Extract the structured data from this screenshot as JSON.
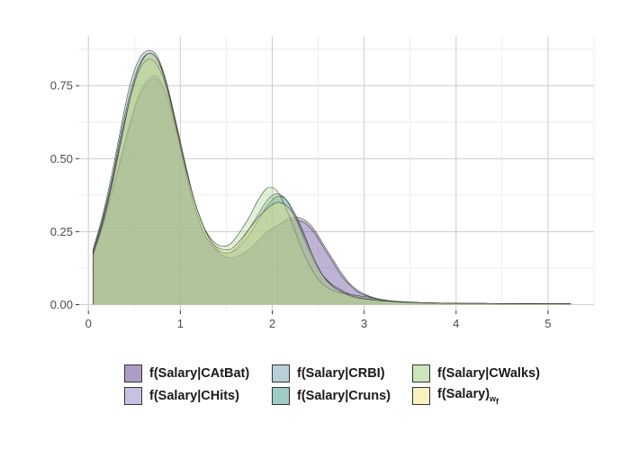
{
  "chart_data": {
    "type": "area",
    "title": "",
    "xlabel": "",
    "ylabel": "",
    "xlim": [
      -0.1,
      5.5
    ],
    "ylim": [
      -0.02,
      0.92
    ],
    "x_ticks": [
      0,
      1,
      2,
      3,
      4,
      5
    ],
    "y_ticks": [
      0.0,
      0.25,
      0.5,
      0.75
    ],
    "x_tick_labels": [
      "0",
      "1",
      "2",
      "3",
      "4",
      "5"
    ],
    "y_tick_labels": [
      "0.00",
      "0.25",
      "0.50",
      "0.75"
    ],
    "grid": true,
    "legend_position": "bottom",
    "series": [
      {
        "name": "f(Salary|CAtBat)",
        "color": "#6a4c93",
        "x": [
          0.05,
          0.15,
          0.25,
          0.35,
          0.45,
          0.55,
          0.65,
          0.75,
          0.85,
          0.95,
          1.05,
          1.15,
          1.25,
          1.35,
          1.45,
          1.55,
          1.65,
          1.75,
          1.85,
          1.95,
          2.05,
          2.15,
          2.25,
          2.35,
          2.45,
          2.55,
          2.65,
          2.75,
          2.85,
          2.95,
          3.05,
          3.15,
          3.25,
          3.35,
          3.5,
          3.7,
          3.9,
          4.1,
          4.3,
          4.5,
          4.7,
          4.9,
          5.1,
          5.25
        ],
        "y": [
          0.18,
          0.27,
          0.38,
          0.5,
          0.62,
          0.72,
          0.77,
          0.78,
          0.72,
          0.6,
          0.46,
          0.34,
          0.25,
          0.2,
          0.17,
          0.16,
          0.17,
          0.19,
          0.22,
          0.25,
          0.27,
          0.29,
          0.3,
          0.29,
          0.26,
          0.21,
          0.16,
          0.11,
          0.07,
          0.045,
          0.03,
          0.02,
          0.014,
          0.01,
          0.008,
          0.006,
          0.005,
          0.004,
          0.004,
          0.003,
          0.003,
          0.003,
          0.003,
          0.003
        ]
      },
      {
        "name": "f(Salary|CHits)",
        "color": "#9b8ec4",
        "x": [
          0.05,
          0.15,
          0.25,
          0.35,
          0.45,
          0.55,
          0.65,
          0.75,
          0.85,
          0.95,
          1.05,
          1.15,
          1.25,
          1.35,
          1.45,
          1.55,
          1.65,
          1.75,
          1.85,
          1.95,
          2.05,
          2.15,
          2.25,
          2.35,
          2.45,
          2.55,
          2.65,
          2.75,
          2.85,
          2.95,
          3.05,
          3.15,
          3.25,
          3.35,
          3.5,
          3.7,
          3.9,
          4.1,
          4.3,
          4.5,
          4.7,
          4.9,
          5.1,
          5.25
        ],
        "y": [
          0.17,
          0.26,
          0.37,
          0.49,
          0.61,
          0.71,
          0.76,
          0.77,
          0.71,
          0.6,
          0.46,
          0.34,
          0.25,
          0.2,
          0.17,
          0.16,
          0.17,
          0.19,
          0.22,
          0.25,
          0.27,
          0.285,
          0.29,
          0.28,
          0.25,
          0.2,
          0.15,
          0.1,
          0.065,
          0.04,
          0.028,
          0.018,
          0.012,
          0.009,
          0.007,
          0.005,
          0.004,
          0.004,
          0.004,
          0.003,
          0.003,
          0.003,
          0.003,
          0.003
        ]
      },
      {
        "name": "f(Salary|CRBI)",
        "color": "#7fa7b8",
        "x": [
          0.05,
          0.15,
          0.25,
          0.35,
          0.45,
          0.55,
          0.65,
          0.75,
          0.85,
          0.95,
          1.05,
          1.15,
          1.25,
          1.35,
          1.45,
          1.55,
          1.65,
          1.75,
          1.85,
          1.95,
          2.05,
          2.15,
          2.25,
          2.35,
          2.45,
          2.55,
          2.65,
          2.75,
          2.85,
          2.95,
          3.05,
          3.15,
          3.25,
          3.35,
          3.5,
          3.7,
          3.9,
          4.1,
          4.3,
          4.5,
          4.7,
          4.9,
          5.1,
          5.25
        ],
        "y": [
          0.19,
          0.3,
          0.44,
          0.6,
          0.75,
          0.84,
          0.87,
          0.85,
          0.76,
          0.62,
          0.47,
          0.34,
          0.25,
          0.2,
          0.18,
          0.18,
          0.21,
          0.26,
          0.31,
          0.36,
          0.38,
          0.36,
          0.3,
          0.22,
          0.15,
          0.1,
          0.07,
          0.05,
          0.035,
          0.025,
          0.018,
          0.014,
          0.012,
          0.01,
          0.008,
          0.006,
          0.005,
          0.004,
          0.004,
          0.003,
          0.004,
          0.004,
          0.003,
          0.003
        ]
      },
      {
        "name": "f(Salary|Cruns)",
        "color": "#4fa38f",
        "x": [
          0.05,
          0.15,
          0.25,
          0.35,
          0.45,
          0.55,
          0.65,
          0.75,
          0.85,
          0.95,
          1.05,
          1.15,
          1.25,
          1.35,
          1.45,
          1.55,
          1.65,
          1.75,
          1.85,
          1.95,
          2.05,
          2.15,
          2.25,
          2.35,
          2.45,
          2.55,
          2.65,
          2.75,
          2.85,
          2.95,
          3.05,
          3.15,
          3.25,
          3.35,
          3.5,
          3.7,
          3.9,
          4.1,
          4.3,
          4.5,
          4.7,
          4.9,
          5.1,
          5.25
        ],
        "y": [
          0.18,
          0.29,
          0.42,
          0.58,
          0.72,
          0.82,
          0.86,
          0.84,
          0.76,
          0.63,
          0.49,
          0.36,
          0.27,
          0.21,
          0.18,
          0.18,
          0.2,
          0.24,
          0.29,
          0.34,
          0.37,
          0.36,
          0.31,
          0.24,
          0.16,
          0.1,
          0.065,
          0.045,
          0.03,
          0.022,
          0.02,
          0.018,
          0.014,
          0.01,
          0.008,
          0.006,
          0.005,
          0.004,
          0.004,
          0.003,
          0.003,
          0.003,
          0.003,
          0.003
        ]
      },
      {
        "name": "f(Salary|CWalks)",
        "color": "#a3d080",
        "x": [
          0.05,
          0.15,
          0.25,
          0.35,
          0.45,
          0.55,
          0.65,
          0.75,
          0.85,
          0.95,
          1.05,
          1.15,
          1.25,
          1.35,
          1.45,
          1.55,
          1.65,
          1.75,
          1.85,
          1.95,
          2.05,
          2.15,
          2.25,
          2.35,
          2.45,
          2.55,
          2.65,
          2.75,
          2.85,
          2.95,
          3.05,
          3.15,
          3.25,
          3.35,
          3.5,
          3.7,
          3.9,
          4.1,
          4.3,
          4.5,
          4.7,
          4.9,
          5.1,
          5.25
        ],
        "y": [
          0.18,
          0.28,
          0.41,
          0.56,
          0.7,
          0.8,
          0.84,
          0.82,
          0.74,
          0.61,
          0.48,
          0.36,
          0.27,
          0.22,
          0.2,
          0.21,
          0.25,
          0.3,
          0.36,
          0.4,
          0.39,
          0.33,
          0.25,
          0.17,
          0.11,
          0.07,
          0.05,
          0.04,
          0.035,
          0.03,
          0.025,
          0.02,
          0.015,
          0.012,
          0.009,
          0.006,
          0.005,
          0.004,
          0.004,
          0.003,
          0.003,
          0.003,
          0.003,
          0.003
        ]
      },
      {
        "name": "f(Salary)",
        "name_subscript": "w",
        "name_subsubscript": "f",
        "color": "#f3e38a",
        "x": [
          0.05,
          0.15,
          0.25,
          0.35,
          0.45,
          0.55,
          0.65,
          0.75,
          0.85,
          0.95,
          1.05,
          1.15,
          1.25,
          1.35,
          1.45,
          1.55,
          1.65,
          1.75,
          1.85,
          1.95,
          2.05,
          2.15,
          2.25,
          2.35,
          2.45,
          2.55,
          2.65,
          2.75,
          2.85,
          2.95,
          3.05,
          3.15,
          3.25,
          3.35,
          3.5,
          3.7,
          3.9,
          4.1,
          4.3,
          4.5,
          4.7,
          4.9,
          5.1,
          5.25
        ],
        "y": [
          0.17,
          0.27,
          0.4,
          0.55,
          0.7,
          0.81,
          0.86,
          0.84,
          0.75,
          0.62,
          0.48,
          0.36,
          0.27,
          0.21,
          0.19,
          0.19,
          0.22,
          0.26,
          0.3,
          0.33,
          0.35,
          0.34,
          0.3,
          0.23,
          0.16,
          0.1,
          0.065,
          0.045,
          0.03,
          0.022,
          0.018,
          0.014,
          0.012,
          0.01,
          0.008,
          0.006,
          0.005,
          0.004,
          0.004,
          0.003,
          0.003,
          0.003,
          0.003,
          0.003
        ]
      }
    ]
  }
}
